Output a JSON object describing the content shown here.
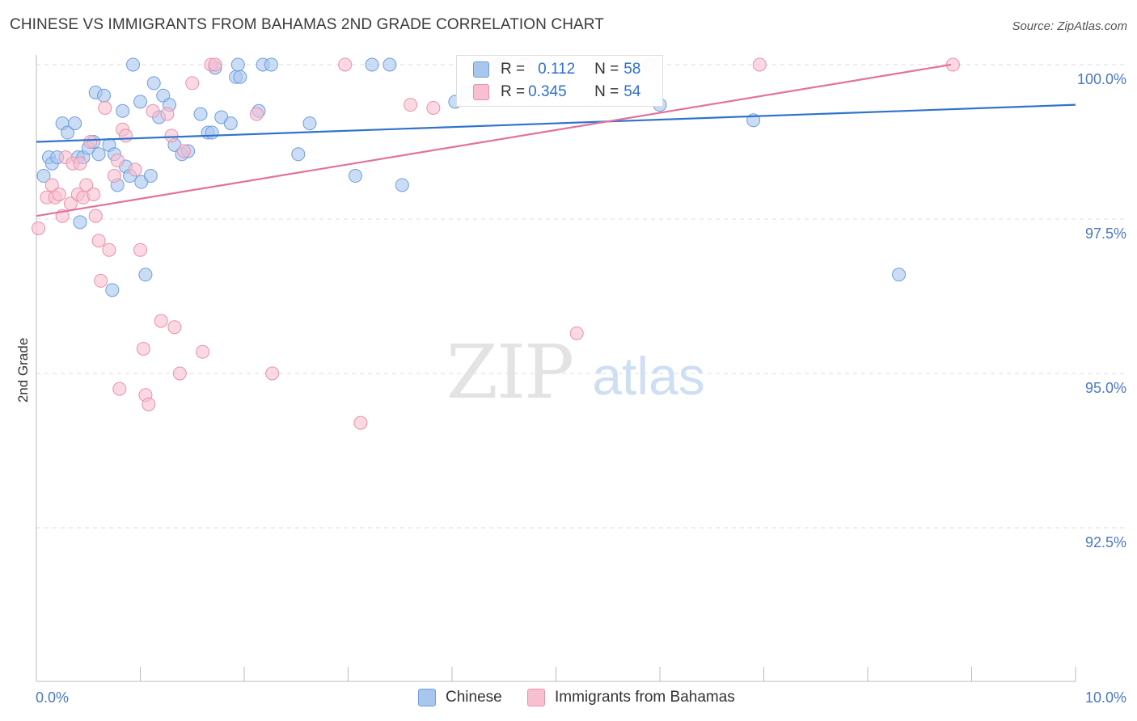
{
  "title": "CHINESE VS IMMIGRANTS FROM BAHAMAS 2ND GRADE CORRELATION CHART",
  "source": "Source: ZipAtlas.com",
  "watermark": {
    "zip": "ZIP",
    "atlas": "atlas"
  },
  "colors": {
    "blue_fill": "#a9c6ee",
    "blue_stroke": "#6f9ede",
    "blue_line": "#2f73cc",
    "pink_fill": "#f7bfd0",
    "pink_stroke": "#ec8fab",
    "pink_line": "#e2729a",
    "tick_text": "#4a78c4"
  },
  "legend_top": {
    "rows": [
      {
        "r_label": "R = ",
        "r_value": "0.112",
        "n_label": "N = ",
        "n_value": "58"
      },
      {
        "r_label": "R = ",
        "r_value": "0.345",
        "n_label": "N = ",
        "n_value": "54"
      }
    ]
  },
  "chart_data": {
    "type": "scatter",
    "title": "CHINESE VS IMMIGRANTS FROM BAHAMAS 2ND GRADE CORRELATION CHART",
    "xlabel": "",
    "ylabel": "2nd Grade",
    "xlim": [
      0,
      10
    ],
    "ylim": [
      90.3,
      100.2
    ],
    "x_tick_labels": [
      "0.0%",
      "10.0%"
    ],
    "y_ticks": [
      92.5,
      95.0,
      97.5,
      100.0
    ],
    "y_tick_labels": [
      "92.5%",
      "95.0%",
      "97.5%",
      "100.0%"
    ],
    "grid": "horizontal dashed",
    "legend_placement": "bottom",
    "series": [
      {
        "name": "Chinese",
        "R": 0.112,
        "N": 58,
        "trend": {
          "x": [
            0,
            10
          ],
          "y": [
            98.75,
            99.35
          ]
        },
        "points": [
          [
            0.07,
            98.2
          ],
          [
            0.12,
            98.5
          ],
          [
            0.15,
            98.4
          ],
          [
            0.2,
            98.5
          ],
          [
            0.25,
            99.05
          ],
          [
            0.3,
            98.9
          ],
          [
            0.37,
            99.05
          ],
          [
            0.4,
            98.5
          ],
          [
            0.45,
            98.5
          ],
          [
            0.42,
            97.45
          ],
          [
            0.5,
            98.65
          ],
          [
            0.55,
            98.75
          ],
          [
            0.6,
            98.55
          ],
          [
            0.57,
            99.55
          ],
          [
            0.65,
            99.5
          ],
          [
            0.7,
            98.7
          ],
          [
            0.75,
            98.55
          ],
          [
            0.73,
            96.35
          ],
          [
            0.78,
            98.05
          ],
          [
            0.83,
            99.25
          ],
          [
            0.86,
            98.35
          ],
          [
            0.9,
            98.2
          ],
          [
            0.93,
            100.0
          ],
          [
            1.0,
            99.4
          ],
          [
            1.01,
            98.1
          ],
          [
            1.05,
            96.6
          ],
          [
            1.1,
            98.2
          ],
          [
            1.13,
            99.7
          ],
          [
            1.18,
            99.15
          ],
          [
            1.22,
            99.5
          ],
          [
            1.28,
            99.35
          ],
          [
            1.33,
            98.7
          ],
          [
            1.4,
            98.55
          ],
          [
            1.46,
            98.6
          ],
          [
            1.58,
            99.2
          ],
          [
            1.65,
            98.9
          ],
          [
            1.69,
            98.9
          ],
          [
            1.72,
            99.95
          ],
          [
            1.78,
            99.15
          ],
          [
            1.87,
            99.05
          ],
          [
            1.92,
            99.8
          ],
          [
            1.94,
            100.0
          ],
          [
            1.96,
            99.8
          ],
          [
            2.14,
            99.25
          ],
          [
            2.18,
            100.0
          ],
          [
            2.26,
            100.0
          ],
          [
            2.52,
            98.55
          ],
          [
            2.63,
            99.05
          ],
          [
            3.07,
            98.2
          ],
          [
            3.23,
            100.0
          ],
          [
            3.4,
            100.0
          ],
          [
            3.52,
            98.05
          ],
          [
            4.03,
            99.4
          ],
          [
            4.14,
            99.55
          ],
          [
            4.48,
            100.0
          ],
          [
            6.0,
            99.35
          ],
          [
            6.9,
            99.1
          ],
          [
            8.3,
            96.6
          ]
        ]
      },
      {
        "name": "Immigrants from Bahamas",
        "R": 0.345,
        "N": 54,
        "trend": {
          "x": [
            0,
            8.8
          ],
          "y": [
            97.55,
            100.0
          ]
        },
        "points": [
          [
            0.02,
            97.35
          ],
          [
            0.1,
            97.85
          ],
          [
            0.15,
            98.05
          ],
          [
            0.18,
            97.85
          ],
          [
            0.22,
            97.9
          ],
          [
            0.25,
            97.55
          ],
          [
            0.28,
            98.5
          ],
          [
            0.33,
            97.75
          ],
          [
            0.35,
            98.4
          ],
          [
            0.4,
            97.9
          ],
          [
            0.42,
            98.4
          ],
          [
            0.45,
            97.85
          ],
          [
            0.48,
            98.05
          ],
          [
            0.52,
            98.75
          ],
          [
            0.55,
            97.9
          ],
          [
            0.57,
            97.55
          ],
          [
            0.6,
            97.15
          ],
          [
            0.62,
            96.5
          ],
          [
            0.66,
            99.3
          ],
          [
            0.7,
            97.0
          ],
          [
            0.75,
            98.2
          ],
          [
            0.78,
            98.45
          ],
          [
            0.8,
            94.75
          ],
          [
            0.83,
            98.95
          ],
          [
            0.86,
            98.85
          ],
          [
            0.95,
            98.3
          ],
          [
            1.0,
            97.0
          ],
          [
            1.03,
            95.4
          ],
          [
            1.05,
            94.65
          ],
          [
            1.08,
            94.5
          ],
          [
            1.12,
            99.25
          ],
          [
            1.2,
            95.85
          ],
          [
            1.26,
            99.2
          ],
          [
            1.3,
            98.85
          ],
          [
            1.33,
            95.75
          ],
          [
            1.38,
            95.0
          ],
          [
            1.42,
            98.6
          ],
          [
            1.5,
            99.7
          ],
          [
            1.6,
            95.35
          ],
          [
            1.68,
            100.0
          ],
          [
            1.72,
            100.0
          ],
          [
            2.12,
            99.2
          ],
          [
            2.27,
            95.0
          ],
          [
            2.97,
            100.0
          ],
          [
            3.12,
            94.2
          ],
          [
            3.6,
            99.35
          ],
          [
            3.82,
            99.3
          ],
          [
            4.3,
            99.45
          ],
          [
            4.45,
            100.0
          ],
          [
            4.7,
            100.0
          ],
          [
            5.2,
            95.65
          ],
          [
            5.9,
            100.0
          ],
          [
            6.96,
            100.0
          ],
          [
            8.82,
            100.0
          ]
        ]
      }
    ]
  },
  "legend_bottom": {
    "items": [
      "Chinese",
      "Immigrants from Bahamas"
    ]
  }
}
